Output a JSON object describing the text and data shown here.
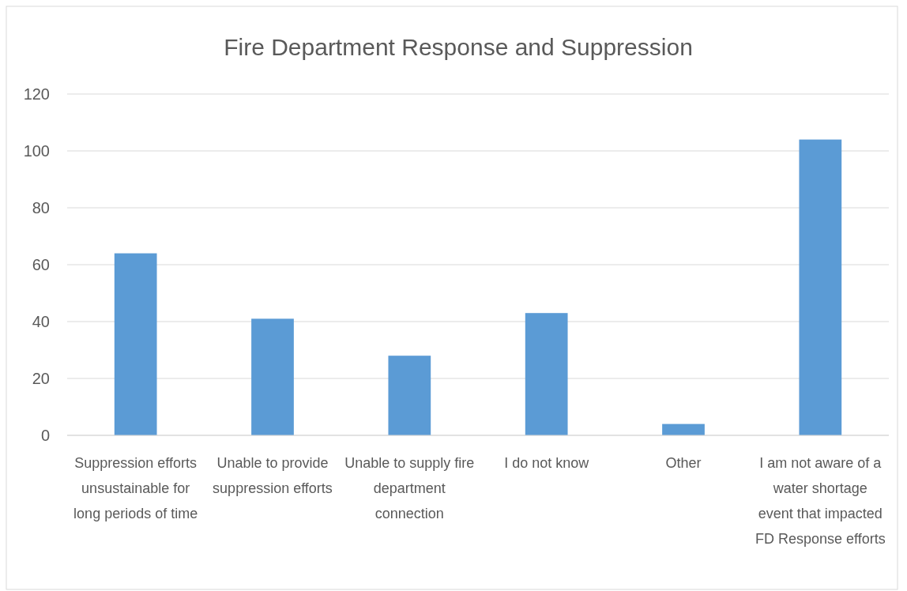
{
  "chart_data": {
    "type": "bar",
    "title": "Fire Department Response and Suppression",
    "categories": [
      "Suppression efforts unsustainable for long periods of time",
      "Unable to provide suppression efforts",
      "Unable to supply fire department connection",
      "I do not know",
      "Other",
      "I am not aware of a water shortage event that impacted FD Response efforts"
    ],
    "values": [
      64,
      41,
      28,
      43,
      4,
      104
    ],
    "color": "#5b9bd5",
    "ylim": [
      0,
      120
    ],
    "yticks": [
      0,
      20,
      40,
      60,
      80,
      100,
      120
    ],
    "grid": "y"
  }
}
